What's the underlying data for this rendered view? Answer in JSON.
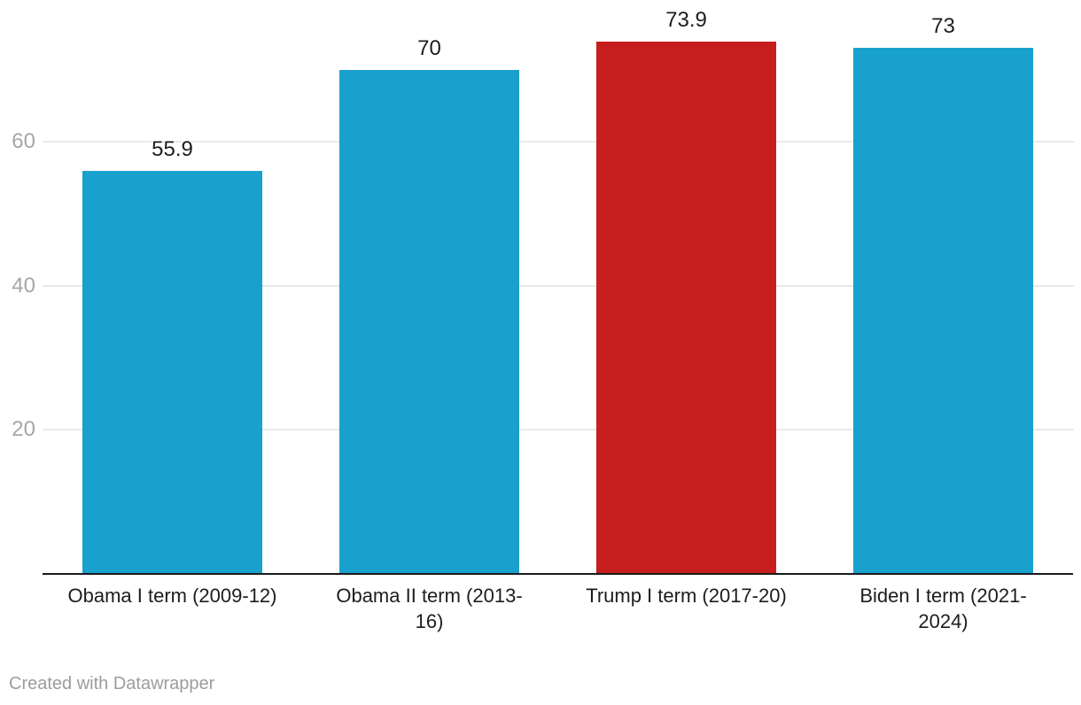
{
  "chart_data": {
    "type": "bar",
    "title": "",
    "xlabel": "",
    "ylabel": "",
    "categories": [
      "Obama I term (2009-12)",
      "Obama II term (2013-16)",
      "Trump I term (2017-20)",
      "Biden I term (2021-2024)"
    ],
    "category_label_lines": [
      [
        "Obama I term (2009-12)"
      ],
      [
        "Obama II term (2013-",
        "16)"
      ],
      [
        "Trump I term (2017-20)"
      ],
      [
        "Biden I term (2021-",
        "2024)"
      ]
    ],
    "values": [
      55.9,
      70,
      73.9,
      73
    ],
    "value_labels": [
      "55.9",
      "70",
      "73.9",
      "73"
    ],
    "bar_colors": [
      "#18a1cd",
      "#18a1cd",
      "#c71e1d",
      "#18a1cd"
    ],
    "highlight_index": 2,
    "yticks": [
      20,
      40,
      60
    ],
    "ytick_labels": [
      "20",
      "40",
      "60"
    ],
    "ylim": [
      0,
      75
    ],
    "grid": "horizontal",
    "legend": "none"
  },
  "footer": {
    "attribution": "Created with Datawrapper"
  },
  "colors": {
    "bar_blue": "#18a1cd",
    "bar_red": "#c71e1d",
    "gridline": "#e9e9e9",
    "axis_line": "#1a1a1a",
    "tick_label": "#a6a6a6",
    "value_label": "#1d1d1d",
    "category_label": "#1d1d1d",
    "attribution": "#9c9c9c",
    "background": "#ffffff"
  }
}
